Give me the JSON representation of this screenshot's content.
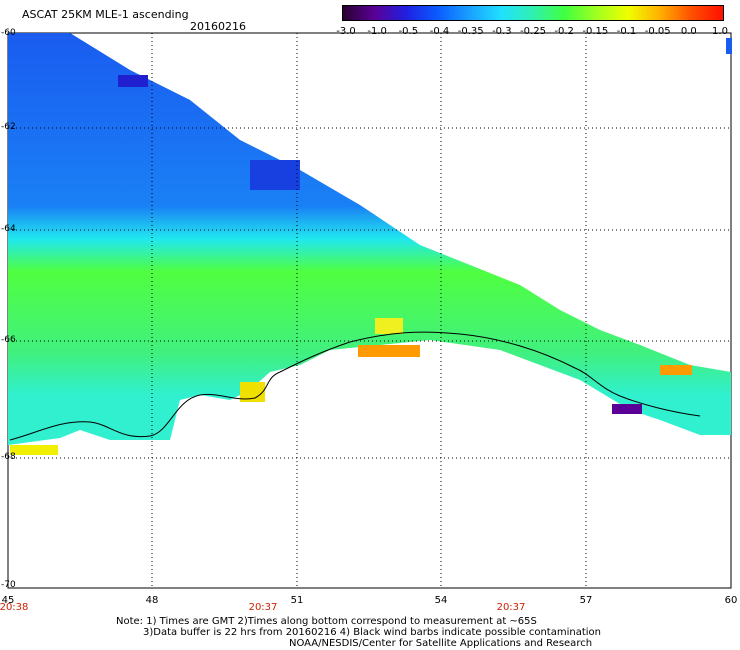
{
  "header": {
    "title": "ASCAT 25KM MLE-1 ascending",
    "date": "20160216"
  },
  "colorbar": {
    "colors": [
      "#2a0030",
      "#5a0096",
      "#2020e0",
      "#0a5cff",
      "#1aa0ff",
      "#20e0ff",
      "#30f0b0",
      "#40ff40",
      "#a0ff20",
      "#f0ff00",
      "#ffb000",
      "#ff5000",
      "#ff1000"
    ],
    "ticks": [
      "-3.0",
      "-1.0",
      "-0.5",
      "-0.4",
      "-0.35",
      "-0.3",
      "-0.25",
      "-0.2",
      "-0.15",
      "-0.1",
      "-0.05",
      "0.0",
      "1.0"
    ]
  },
  "axes": {
    "lat_labels": [
      "-60",
      "-62",
      "-64",
      "-66",
      "-68",
      "-70"
    ],
    "lon_labels": [
      "45",
      "48",
      "51",
      "54",
      "57",
      "60"
    ],
    "time_labels": [
      "20:38",
      "20:37",
      "20:37"
    ]
  },
  "notes": {
    "line1": "Note: 1) Times are GMT 2)Times along bottom correspond to measurement at ~65S",
    "line2": "3)Data buffer is 22 hrs from 20160216 4) Black wind barbs indicate possible contamination",
    "line3": "NOAA/NESDIS/Center for Satellite Applications and Research"
  }
}
